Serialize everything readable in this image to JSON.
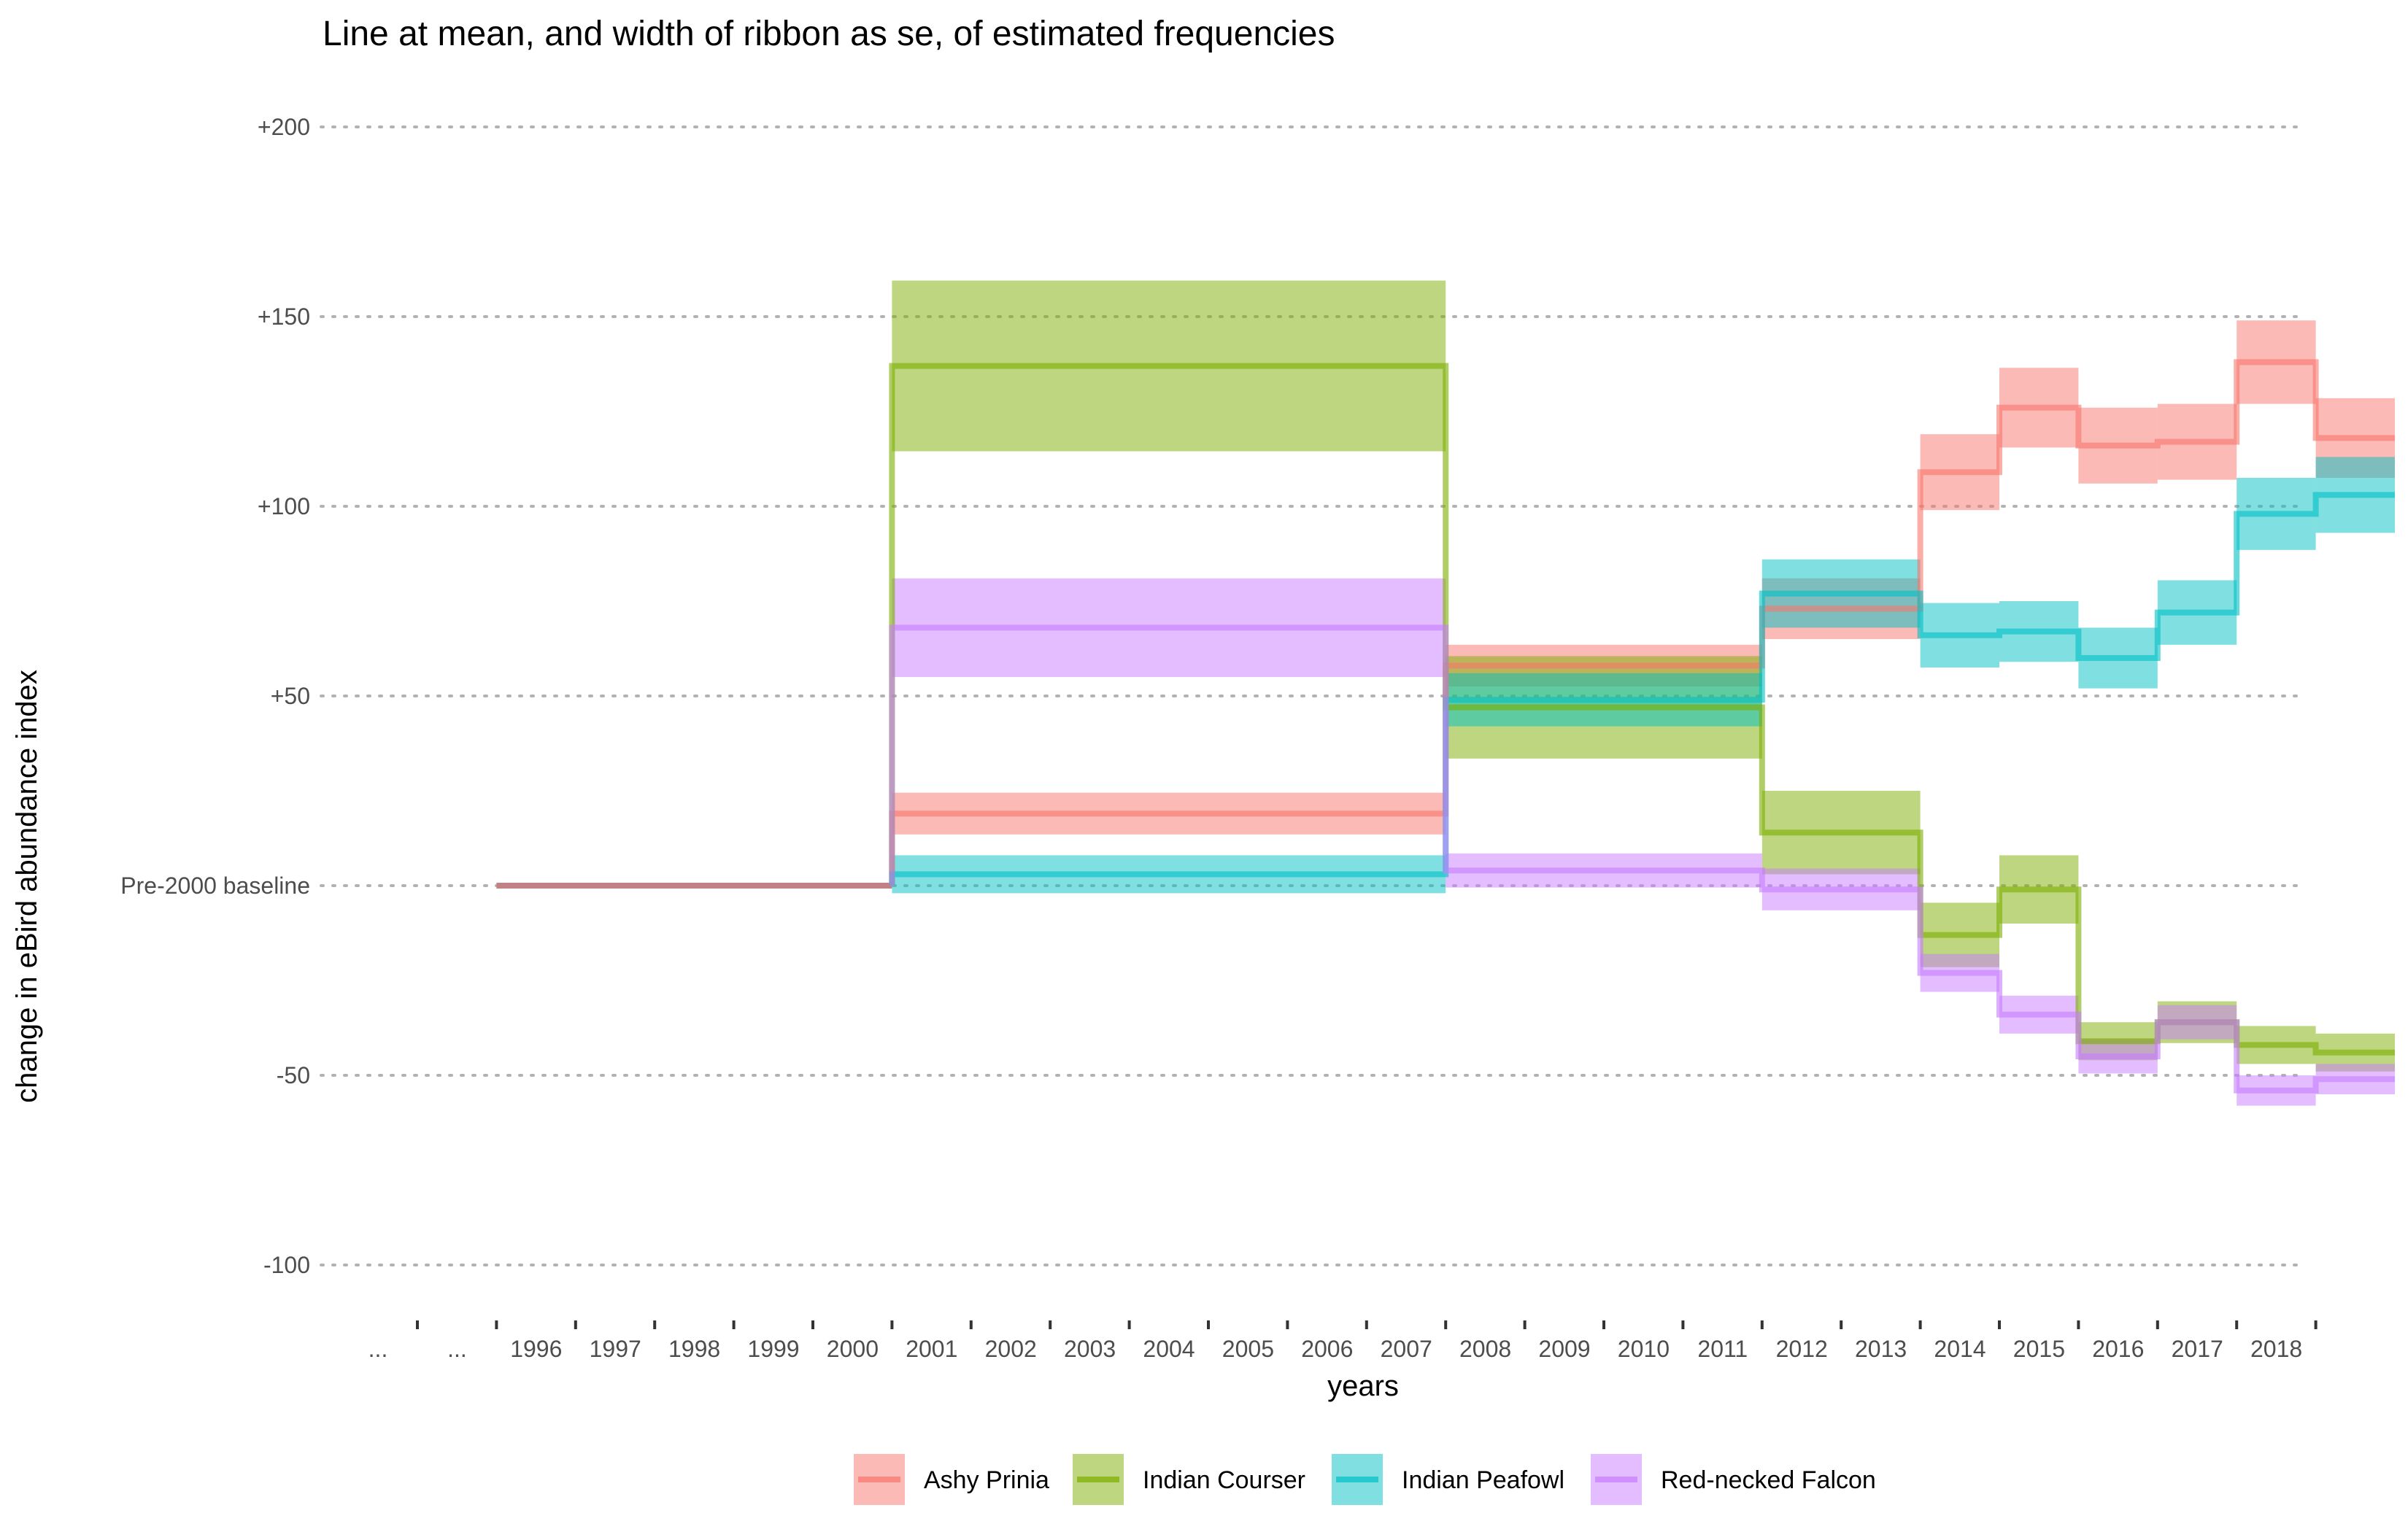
{
  "chart_data": {
    "type": "line",
    "subtype": "step line with ribbons (mean ± se)",
    "title": "Line at mean, and width of ribbon as se, of estimated frequencies",
    "xlabel": "years",
    "ylabel": "change in eBird abundance index",
    "ylim": [
      -110,
      210
    ],
    "grid": "horizontal dotted",
    "legend_position": "bottom",
    "x_ticks": [
      "...",
      "...",
      "1996",
      "1997",
      "1998",
      "1999",
      "2000",
      "2001",
      "2002",
      "2003",
      "2004",
      "2005",
      "2006",
      "2007",
      "2008",
      "2009",
      "2010",
      "2011",
      "2012",
      "2013",
      "2014",
      "2015",
      "2016",
      "2017",
      "2018"
    ],
    "y_ticks": [
      {
        "value": 200,
        "label": "+200"
      },
      {
        "value": 150,
        "label": "+150"
      },
      {
        "value": 100,
        "label": "+100"
      },
      {
        "value": 50,
        "label": "+50"
      },
      {
        "value": 0,
        "label": "Pre-2000 baseline"
      },
      {
        "value": -50,
        "label": "-50"
      },
      {
        "value": -100,
        "label": "-100"
      }
    ],
    "baseline": {
      "from": "...",
      "to": "1999",
      "value": 0
    },
    "series": [
      {
        "name": "Ashy Prinia",
        "color": "#F8766D",
        "periods": [
          {
            "from": "2000",
            "to": "2006",
            "mean": 19,
            "se": 5.5
          },
          {
            "from": "2007",
            "to": "2010",
            "mean": 58,
            "se": 5.5
          },
          {
            "from": "2011",
            "to": "2012",
            "mean": 73,
            "se": 8
          },
          {
            "from": "2013",
            "to": "2013",
            "mean": 109,
            "se": 10
          },
          {
            "from": "2014",
            "to": "2014",
            "mean": 126,
            "se": 10.5
          },
          {
            "from": "2015",
            "to": "2015",
            "mean": 116,
            "se": 10
          },
          {
            "from": "2016",
            "to": "2016",
            "mean": 117,
            "se": 10
          },
          {
            "from": "2017",
            "to": "2017",
            "mean": 138,
            "se": 11
          },
          {
            "from": "2018",
            "to": "2018",
            "mean": 118,
            "se": 10.5
          }
        ]
      },
      {
        "name": "Indian Courser",
        "color": "#7CAE00",
        "periods": [
          {
            "from": "2000",
            "to": "2006",
            "mean": 137,
            "se": 22.5
          },
          {
            "from": "2007",
            "to": "2010",
            "mean": 47,
            "se": 13.5
          },
          {
            "from": "2011",
            "to": "2012",
            "mean": 14,
            "se": 11
          },
          {
            "from": "2013",
            "to": "2013",
            "mean": -13,
            "se": 8.5
          },
          {
            "from": "2014",
            "to": "2014",
            "mean": -1,
            "se": 9
          },
          {
            "from": "2015",
            "to": "2015",
            "mean": -41,
            "se": 5
          },
          {
            "from": "2016",
            "to": "2016",
            "mean": -36,
            "se": 5.5
          },
          {
            "from": "2017",
            "to": "2017",
            "mean": -42,
            "se": 5
          },
          {
            "from": "2018",
            "to": "2018",
            "mean": -44,
            "se": 5
          }
        ]
      },
      {
        "name": "Indian Peafowl",
        "color": "#00BFC4",
        "periods": [
          {
            "from": "2000",
            "to": "2006",
            "mean": 3,
            "se": 5
          },
          {
            "from": "2007",
            "to": "2010",
            "mean": 49,
            "se": 7
          },
          {
            "from": "2011",
            "to": "2012",
            "mean": 77,
            "se": 9
          },
          {
            "from": "2013",
            "to": "2013",
            "mean": 66,
            "se": 8.5
          },
          {
            "from": "2014",
            "to": "2014",
            "mean": 67,
            "se": 8
          },
          {
            "from": "2015",
            "to": "2015",
            "mean": 60,
            "se": 8
          },
          {
            "from": "2016",
            "to": "2016",
            "mean": 72,
            "se": 8.5
          },
          {
            "from": "2017",
            "to": "2017",
            "mean": 98,
            "se": 9.5
          },
          {
            "from": "2018",
            "to": "2018",
            "mean": 103,
            "se": 10
          }
        ]
      },
      {
        "name": "Red-necked Falcon",
        "color": "#C77CFF",
        "periods": [
          {
            "from": "2000",
            "to": "2006",
            "mean": 68,
            "se": 13
          },
          {
            "from": "2007",
            "to": "2010",
            "mean": 4,
            "se": 4.5
          },
          {
            "from": "2011",
            "to": "2012",
            "mean": -1,
            "se": 5.5
          },
          {
            "from": "2013",
            "to": "2013",
            "mean": -23,
            "se": 5
          },
          {
            "from": "2014",
            "to": "2014",
            "mean": -34,
            "se": 5
          },
          {
            "from": "2015",
            "to": "2015",
            "mean": -45,
            "se": 4.5
          },
          {
            "from": "2016",
            "to": "2016",
            "mean": -36,
            "se": 4.5
          },
          {
            "from": "2017",
            "to": "2017",
            "mean": -54,
            "se": 4
          },
          {
            "from": "2018",
            "to": "2018",
            "mean": -51,
            "se": 4
          }
        ]
      }
    ]
  }
}
